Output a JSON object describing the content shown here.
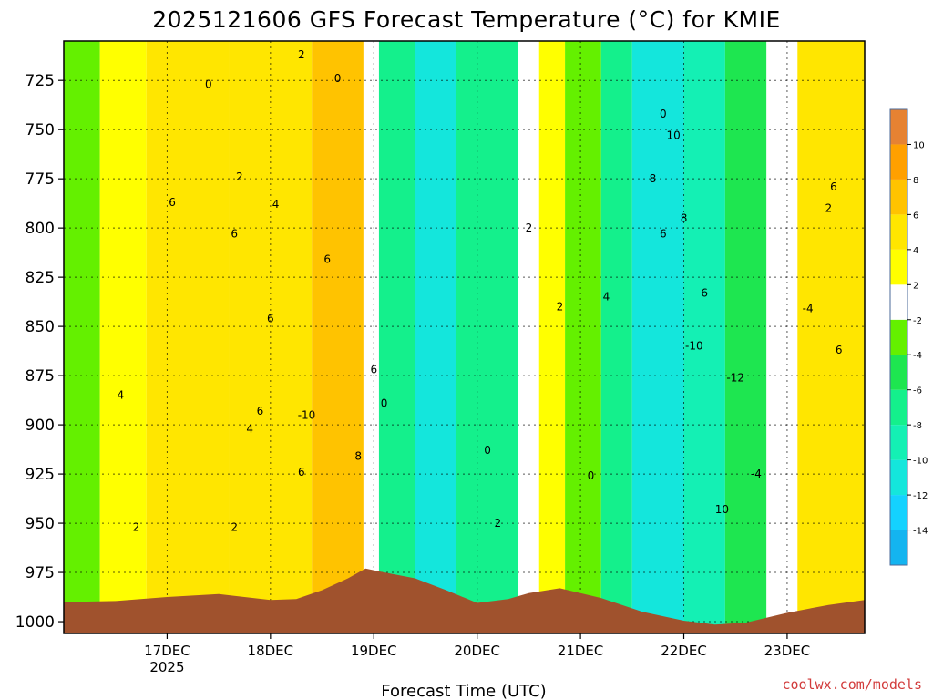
{
  "chart_data": {
    "type": "heatmap",
    "title": "2025121606 GFS Forecast Temperature (°C) for KMIE",
    "xlabel": "Forecast Time (UTC)",
    "ylabel": "",
    "credit": "coolwx.com/models",
    "x_ticks": [
      {
        "label": "17DEC",
        "sub": "2025",
        "day": 1
      },
      {
        "label": "18DEC",
        "sub": "",
        "day": 2
      },
      {
        "label": "19DEC",
        "sub": "",
        "day": 3
      },
      {
        "label": "20DEC",
        "sub": "",
        "day": 4
      },
      {
        "label": "21DEC",
        "sub": "",
        "day": 5
      },
      {
        "label": "22DEC",
        "sub": "",
        "day": 6
      },
      {
        "label": "23DEC",
        "sub": "",
        "day": 7
      }
    ],
    "xlim_days": [
      0.0,
      7.75
    ],
    "y_ticks": [
      725,
      750,
      775,
      800,
      825,
      850,
      875,
      900,
      925,
      950,
      975,
      1000
    ],
    "ylim_hpa": [
      705,
      1006
    ],
    "colorbar": {
      "levels": [
        -16,
        -14,
        -12,
        -10,
        -8,
        -6,
        -4,
        -2,
        2,
        4,
        6,
        8,
        10,
        12
      ],
      "tick_labels": [
        "-14",
        "-12",
        "-10",
        "-8",
        "-6",
        "-4",
        "-2",
        "2",
        "4",
        "6",
        "8",
        "10"
      ],
      "colors": [
        "#14b4f0",
        "#14d2ff",
        "#14e6dc",
        "#14f0b4",
        "#14f08c",
        "#1ee650",
        "#64f000",
        "#ffffff",
        "#ffff00",
        "#ffe600",
        "#ffc300",
        "#ffa000",
        "#e68232"
      ]
    },
    "terrain_color": "#a0522d",
    "surface_pressure": [
      {
        "day": 0.0,
        "p": 990.0
      },
      {
        "day": 0.5,
        "p": 989.5
      },
      {
        "day": 1.0,
        "p": 987.5
      },
      {
        "day": 1.5,
        "p": 986.0
      },
      {
        "day": 2.0,
        "p": 989.0
      },
      {
        "day": 2.25,
        "p": 988.5
      },
      {
        "day": 2.5,
        "p": 984.0
      },
      {
        "day": 2.75,
        "p": 978.0
      },
      {
        "day": 2.92,
        "p": 973.0
      },
      {
        "day": 3.1,
        "p": 975.0
      },
      {
        "day": 3.4,
        "p": 978.0
      },
      {
        "day": 3.7,
        "p": 984.0
      },
      {
        "day": 4.0,
        "p": 990.5
      },
      {
        "day": 4.3,
        "p": 988.5
      },
      {
        "day": 4.5,
        "p": 985.5
      },
      {
        "day": 4.8,
        "p": 983.0
      },
      {
        "day": 5.2,
        "p": 988.0
      },
      {
        "day": 5.6,
        "p": 995.0
      },
      {
        "day": 6.0,
        "p": 999.5
      },
      {
        "day": 6.3,
        "p": 1001.5
      },
      {
        "day": 6.6,
        "p": 1000.5
      },
      {
        "day": 7.0,
        "p": 995.5
      },
      {
        "day": 7.4,
        "p": 991.5
      },
      {
        "day": 7.75,
        "p": 989.0
      }
    ],
    "temperature_regions": [
      {
        "days": [
          0.0,
          0.35
        ],
        "value": -3
      },
      {
        "days": [
          0.35,
          0.8
        ],
        "value": 3
      },
      {
        "days": [
          0.8,
          1.6
        ],
        "value": 5
      },
      {
        "days": [
          1.6,
          2.4
        ],
        "value": 5
      },
      {
        "days": [
          2.4,
          2.9
        ],
        "value": 7
      },
      {
        "days": [
          2.9,
          3.05
        ],
        "value": 0
      },
      {
        "days": [
          3.05,
          3.4
        ],
        "value": -7
      },
      {
        "days": [
          3.4,
          3.8
        ],
        "value": -11
      },
      {
        "days": [
          3.8,
          4.4
        ],
        "value": -7
      },
      {
        "days": [
          4.4,
          4.6
        ],
        "value": 0
      },
      {
        "days": [
          4.6,
          4.85
        ],
        "value": 3
      },
      {
        "days": [
          4.85,
          5.2
        ],
        "value": -3
      },
      {
        "days": [
          5.2,
          5.5
        ],
        "value": -7
      },
      {
        "days": [
          5.5,
          6.0
        ],
        "value": -11
      },
      {
        "days": [
          6.0,
          6.4
        ],
        "value": -9
      },
      {
        "days": [
          6.4,
          6.8
        ],
        "value": -5
      },
      {
        "days": [
          6.8,
          7.1
        ],
        "value": 0
      },
      {
        "days": [
          7.1,
          7.75
        ],
        "value": 5
      }
    ],
    "contour_labels": [
      {
        "day": 1.05,
        "p": 787,
        "text": "6"
      },
      {
        "day": 1.65,
        "p": 803,
        "text": "6"
      },
      {
        "day": 2.0,
        "p": 846,
        "text": "6"
      },
      {
        "day": 2.55,
        "p": 816,
        "text": "6"
      },
      {
        "day": 3.0,
        "p": 872,
        "text": "6"
      },
      {
        "day": 1.9,
        "p": 893,
        "text": "6"
      },
      {
        "day": 2.3,
        "p": 924,
        "text": "6"
      },
      {
        "day": 0.55,
        "p": 885,
        "text": "4"
      },
      {
        "day": 1.8,
        "p": 902,
        "text": "4"
      },
      {
        "day": 2.05,
        "p": 788,
        "text": "4"
      },
      {
        "day": 1.7,
        "p": 774,
        "text": "2"
      },
      {
        "day": 0.7,
        "p": 952,
        "text": "2"
      },
      {
        "day": 1.65,
        "p": 952,
        "text": "2"
      },
      {
        "day": 2.85,
        "p": 916,
        "text": "8"
      },
      {
        "day": 1.4,
        "p": 727,
        "text": "0"
      },
      {
        "day": 2.65,
        "p": 724,
        "text": "0"
      },
      {
        "day": 3.1,
        "p": 889,
        "text": "0"
      },
      {
        "day": 4.1,
        "p": 913,
        "text": "0"
      },
      {
        "day": 4.2,
        "p": 950,
        "text": "2"
      },
      {
        "day": 4.5,
        "p": 800,
        "text": "2"
      },
      {
        "day": 4.8,
        "p": 840,
        "text": "2"
      },
      {
        "day": 5.1,
        "p": 926,
        "text": "0"
      },
      {
        "day": 5.25,
        "p": 835,
        "text": "4"
      },
      {
        "day": 5.8,
        "p": 742,
        "text": "0"
      },
      {
        "day": 6.2,
        "p": 833,
        "text": "6"
      },
      {
        "day": 5.7,
        "p": 775,
        "text": "8"
      },
      {
        "day": 5.9,
        "p": 753,
        "text": "10"
      },
      {
        "day": 5.8,
        "p": 803,
        "text": "6"
      },
      {
        "day": 6.0,
        "p": 795,
        "text": "8"
      },
      {
        "day": 2.3,
        "p": 712,
        "text": "2"
      },
      {
        "day": 2.35,
        "p": 895,
        "text": "-10"
      },
      {
        "day": 6.5,
        "p": 876,
        "text": "-12"
      },
      {
        "day": 6.1,
        "p": 860,
        "text": "-10"
      },
      {
        "day": 6.35,
        "p": 943,
        "text": "-10"
      },
      {
        "day": 6.7,
        "p": 925,
        "text": "-4"
      },
      {
        "day": 7.2,
        "p": 841,
        "text": "-4"
      },
      {
        "day": 7.45,
        "p": 779,
        "text": "6"
      },
      {
        "day": 7.5,
        "p": 862,
        "text": "6"
      },
      {
        "day": 7.4,
        "p": 790,
        "text": "2"
      }
    ]
  }
}
